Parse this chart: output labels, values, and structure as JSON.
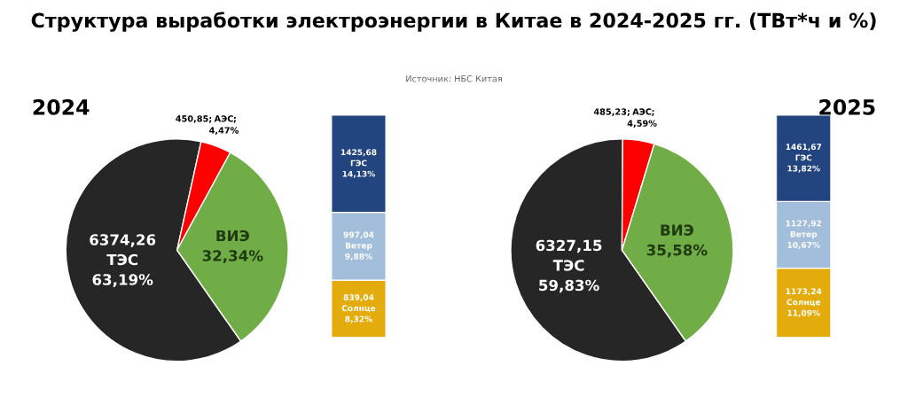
{
  "chart_data": [
    {
      "type": "pie",
      "title": "2024",
      "annotations": [
        "Структура выработки электроэнергии в Китае в 2024-2025 гг. (ТВт*ч и %)",
        "Источник: НБС Китая"
      ],
      "categories": [
        "ТЭС",
        "АЭС",
        "ВИЭ"
      ],
      "values": [
        63.19,
        4.47,
        32.34
      ],
      "colors": [
        "#262626",
        "#ff0000",
        "#70ad47"
      ],
      "value_labels": [
        "6374,26\n\n63,19%",
        "450,85;\n;\n4,47%",
        "\n\n32,34%"
      ]
    },
    {
      "type": "bar",
      "stacked": true,
      "categories": [
        null
      ],
      "tick_labels": false,
      "annotations": [
        "8,32%",
        "9,88%",
        "14,13%"
      ],
      "series": [
        {
          "name": "Солнце",
          "color": "#e3ac0c",
          "values": [
            839.04
          ],
          "value_labels": [
            "839,04"
          ]
        },
        {
          "name": "Ветер",
          "color": "#a3bedb",
          "values": [
            997.04
          ],
          "value_labels": [
            "997,04"
          ]
        },
        {
          "name": "ГЭС",
          "color": "#23457f",
          "values": [
            1425.68
          ],
          "value_labels": [
            "1425,68"
          ]
        }
      ]
    },
    {
      "type": "pie",
      "title": "2025",
      "categories": [
        "ТЭС",
        "АЭС",
        "ВИЭ"
      ],
      "values": [
        59.83,
        4.59,
        35.58
      ],
      "colors": [
        "#262626",
        "#ff0000",
        "#70ad47"
      ],
      "value_labels": [
        "6327,15\n\n59,83%",
        "485,23;\n;\n4,59%",
        "\n\n35,58%"
      ]
    },
    {
      "type": "bar",
      "stacked": true,
      "categories": [
        null
      ],
      "tick_labels": false,
      "annotations": [
        "11,09%",
        "10,67%",
        "13,82%"
      ],
      "series": [
        {
          "name": "Солнце",
          "color": "#e3ac0c",
          "values": [
            1173.24
          ],
          "value_labels": [
            "1173,24"
          ]
        },
        {
          "name": "Ветер",
          "color": "#a3bedb",
          "values": [
            1127.92
          ],
          "value_labels": [
            "1127,92"
          ]
        },
        {
          "name": "ГЭС",
          "color": "#23457f",
          "values": [
            1461.67
          ],
          "value_labels": [
            "1461,67"
          ]
        }
      ]
    }
  ]
}
